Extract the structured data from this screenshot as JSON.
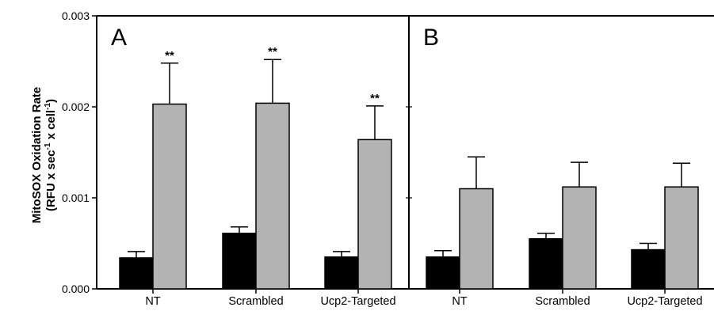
{
  "chart_data": {
    "type": "bar",
    "ylabel_line1": "MitoSOX Oxidation Rate",
    "ylabel_line2_parts": [
      "(RFU x sec",
      "-1",
      " x cell",
      "-1",
      ")"
    ],
    "ylim": [
      0,
      0.003
    ],
    "y_ticks": [
      "0.000",
      "0.001",
      "0.002",
      "0.003"
    ],
    "y_tick_values": [
      0,
      0.001,
      0.002,
      0.003
    ],
    "grid": false,
    "legend": "none",
    "colors": {
      "series1": "#000000",
      "series2": "#b3b3b3",
      "error": "#000000"
    },
    "panels": [
      {
        "label": "A",
        "categories": [
          "NT",
          "Scrambled",
          "Ucp2-Targeted"
        ],
        "series": [
          {
            "values": [
              0.00034,
              0.00061,
              0.00035
            ],
            "errors": [
              7e-05,
              7e-05,
              6e-05
            ]
          },
          {
            "values": [
              0.00203,
              0.00204,
              0.00164
            ],
            "errors": [
              0.00045,
              0.00048,
              0.00037
            ]
          }
        ],
        "significance": [
          "**",
          "**",
          "**"
        ]
      },
      {
        "label": "B",
        "categories": [
          "NT",
          "Scrambled",
          "Ucp2-Targeted"
        ],
        "series": [
          {
            "values": [
              0.00035,
              0.00055,
              0.00043
            ],
            "errors": [
              7e-05,
              6e-05,
              7e-05
            ]
          },
          {
            "values": [
              0.0011,
              0.00112,
              0.00112
            ],
            "errors": [
              0.00035,
              0.00027,
              0.00026
            ]
          }
        ],
        "significance": [
          "",
          "",
          ""
        ]
      }
    ]
  }
}
